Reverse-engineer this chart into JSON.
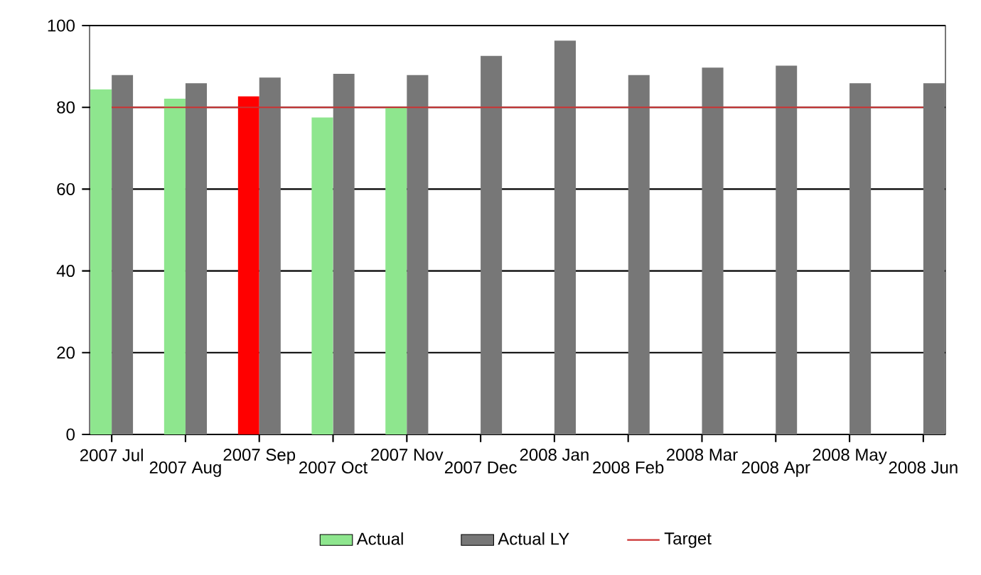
{
  "chart_data": {
    "type": "bar",
    "categories": [
      "2007 Jul",
      "2007 Aug",
      "2007 Sep",
      "2007 Oct",
      "2007 Nov",
      "2007 Dec",
      "2008 Jan",
      "2008 Feb",
      "2008 Mar",
      "2008 Apr",
      "2008 May",
      "2008 Jun"
    ],
    "series": [
      {
        "name": "Actual",
        "color": "#8ee68e",
        "colors": [
          "#8ee68e",
          "#8ee68e",
          "#ff0000",
          "#8ee68e",
          "#8ee68e",
          null,
          null,
          null,
          null,
          null,
          null,
          null
        ],
        "values": [
          84.4,
          82.1,
          82.7,
          77.5,
          80,
          null,
          null,
          null,
          null,
          null,
          null,
          null
        ]
      },
      {
        "name": "Actual LY",
        "color": "#777777",
        "values": [
          87.9,
          85.9,
          87.3,
          88.2,
          87.9,
          92.6,
          96.3,
          87.9,
          89.7,
          90.2,
          85.9,
          85.9
        ]
      },
      {
        "name": "Target",
        "type": "line",
        "color": "#cc3333",
        "values": [
          80,
          80,
          80,
          80,
          80,
          80,
          80,
          80,
          80,
          80,
          80,
          80
        ]
      }
    ],
    "ylim": [
      0,
      100
    ],
    "yticks": [
      0,
      20,
      40,
      60,
      80,
      100
    ],
    "grid": "y",
    "legend": "bottom"
  }
}
